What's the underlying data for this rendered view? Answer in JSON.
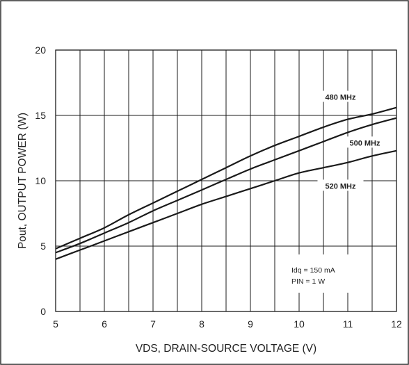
{
  "chart_data": {
    "type": "line",
    "title": "",
    "xlabel": "VDS, DRAIN-SOURCE VOLTAGE (V)",
    "ylabel": "Pout, OUTPUT POWER (W)",
    "xlim": [
      5,
      12
    ],
    "ylim": [
      0,
      20
    ],
    "x_ticks": [
      "5",
      "6",
      "7",
      "8",
      "9",
      "10",
      "11",
      "12"
    ],
    "y_ticks": [
      "0",
      "5",
      "10",
      "15",
      "20"
    ],
    "grid": true,
    "series": [
      {
        "name": "480 MHz",
        "x": [
          5,
          5.5,
          6,
          6.5,
          7,
          7.5,
          8,
          8.5,
          9,
          9.5,
          10,
          10.5,
          11,
          11.5,
          12
        ],
        "y": [
          4.8,
          5.6,
          6.4,
          7.4,
          8.3,
          9.2,
          10.1,
          11.0,
          11.9,
          12.7,
          13.4,
          14.1,
          14.7,
          15.1,
          15.6
        ]
      },
      {
        "name": "500 MHz",
        "x": [
          5,
          5.5,
          6,
          6.5,
          7,
          7.5,
          8,
          8.5,
          9,
          9.5,
          10,
          10.5,
          11,
          11.5,
          12
        ],
        "y": [
          4.5,
          5.2,
          6.0,
          6.8,
          7.7,
          8.5,
          9.3,
          10.1,
          10.9,
          11.6,
          12.3,
          13.0,
          13.7,
          14.3,
          14.8
        ]
      },
      {
        "name": "520 MHz",
        "x": [
          5,
          5.5,
          6,
          6.5,
          7,
          7.5,
          8,
          8.5,
          9,
          9.5,
          10,
          10.5,
          11,
          11.5,
          12
        ],
        "y": [
          4.0,
          4.7,
          5.4,
          6.1,
          6.8,
          7.5,
          8.2,
          8.8,
          9.4,
          10.0,
          10.6,
          11.0,
          11.4,
          11.9,
          12.3
        ]
      }
    ],
    "annotations": [
      "Idq = 150 mA",
      "PIN = 1 W"
    ],
    "colors": {
      "line": "#1a1a1a",
      "grid": "#1a1a1a",
      "background": "#ffffff"
    }
  }
}
